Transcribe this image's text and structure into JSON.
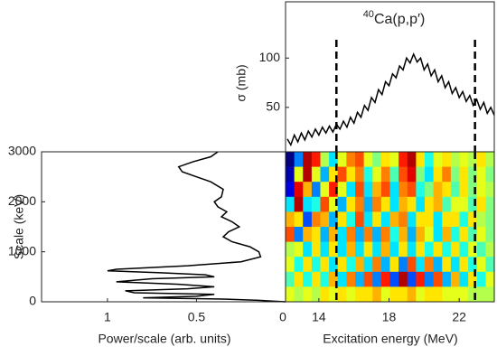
{
  "chart_data": [
    {
      "type": "line",
      "ylabel": "σ (mb)",
      "annotation": [
        "40",
        "Ca(p,p′)"
      ],
      "color": "#000000",
      "xlim": [
        12.1,
        24
      ],
      "ylim": [
        5,
        157
      ],
      "yticks": [
        50,
        100
      ],
      "vlines": [
        15,
        22.9
      ],
      "x": [
        12.2,
        12.4,
        12.6,
        12.8,
        13.0,
        13.2,
        13.4,
        13.6,
        13.8,
        14.0,
        14.2,
        14.4,
        14.6,
        14.8,
        15.0,
        15.2,
        15.4,
        15.6,
        15.8,
        16.0,
        16.2,
        16.4,
        16.6,
        16.8,
        17.0,
        17.2,
        17.4,
        17.6,
        17.8,
        18.0,
        18.2,
        18.4,
        18.6,
        18.8,
        19.0,
        19.2,
        19.4,
        19.6,
        19.8,
        20.0,
        20.2,
        20.4,
        20.6,
        20.8,
        21.0,
        21.2,
        21.4,
        21.6,
        21.8,
        22.0,
        22.2,
        22.4,
        22.6,
        22.8,
        23.0,
        23.2,
        23.4,
        23.6,
        23.8,
        24.0
      ],
      "values": [
        18,
        12,
        22,
        15,
        24,
        17,
        26,
        20,
        28,
        22,
        30,
        24,
        31,
        25,
        33,
        28,
        36,
        30,
        40,
        34,
        45,
        40,
        52,
        47,
        60,
        55,
        68,
        63,
        76,
        72,
        84,
        80,
        92,
        88,
        100,
        95,
        104,
        96,
        100,
        88,
        94,
        82,
        88,
        76,
        82,
        70,
        76,
        64,
        70,
        60,
        66,
        56,
        62,
        52,
        58,
        48,
        55,
        44,
        50,
        42
      ]
    },
    {
      "type": "line",
      "xlabel": "Power/scale (arb. units)",
      "ylabel": "Scale (keV)",
      "color": "#000000",
      "xlim": [
        1.37,
        0
      ],
      "xticks": [
        1,
        0.5,
        0
      ],
      "ylim": [
        0,
        3000
      ],
      "yticks": [
        0,
        1000,
        2000,
        3000
      ],
      "x": [
        0.38,
        0.42,
        0.52,
        0.6,
        0.58,
        0.5,
        0.42,
        0.35,
        0.36,
        0.4,
        0.38,
        0.33,
        0.36,
        0.3,
        0.26,
        0.32,
        0.35,
        0.3,
        0.2,
        0.15,
        0.14,
        0.25,
        0.55,
        0.95,
        1.0,
        0.7,
        0.45,
        0.4,
        0.75,
        0.95,
        0.6,
        0.4,
        0.55,
        0.9,
        0.85,
        0.4,
        0.5,
        0.8,
        0.35,
        0.15,
        0.05,
        0
      ],
      "values": [
        3000,
        2900,
        2800,
        2700,
        2600,
        2500,
        2400,
        2250,
        2100,
        2000,
        1900,
        1800,
        1700,
        1600,
        1500,
        1400,
        1300,
        1200,
        1100,
        1000,
        900,
        800,
        720,
        650,
        620,
        580,
        540,
        500,
        460,
        400,
        350,
        300,
        260,
        220,
        180,
        150,
        110,
        80,
        55,
        30,
        10,
        0
      ]
    },
    {
      "type": "heatmap",
      "xlabel": "Excitation energy (MeV)",
      "xlim": [
        12.1,
        24
      ],
      "xticks": [
        14,
        18,
        22
      ],
      "ylim": [
        0,
        3000
      ],
      "colormap": "jet",
      "zlim": [
        -1,
        1
      ],
      "vlines": [
        15,
        22.9
      ],
      "z": [
        [
          -1,
          -0.5,
          0.9,
          0.7,
          0.1,
          -0.3,
          0.2,
          0.5,
          0.6,
          0.2,
          0,
          0.3,
          0.2,
          0.7,
          0.9,
          0.3,
          -0.2,
          0.2,
          0.3,
          0.1,
          0.2,
          0.1,
          0.3,
          0.1
        ],
        [
          -0.9,
          0.2,
          0.9,
          0.2,
          -0.4,
          0.3,
          0.6,
          0.3,
          0.5,
          -0.2,
          0.2,
          0.5,
          -0.1,
          0.6,
          0.8,
          0,
          -0.3,
          0.3,
          0.5,
          0,
          0.3,
          0,
          0.2,
          0
        ],
        [
          -0.8,
          0.8,
          0.4,
          -0.5,
          0.2,
          0.7,
          0.2,
          -0.3,
          0.6,
          -0.3,
          0.4,
          0.6,
          -0.3,
          0.5,
          0.6,
          -0.2,
          0,
          0.4,
          0.3,
          -0.1,
          0.3,
          0,
          0.2,
          0.1
        ],
        [
          -0.3,
          0.9,
          -0.3,
          -0.2,
          0.6,
          0.2,
          -0.4,
          0.3,
          0.5,
          -0.4,
          0.5,
          0.3,
          -0.3,
          0.4,
          0.3,
          -0.3,
          0.3,
          0.4,
          -0.1,
          0.2,
          0.2,
          -0.1,
          0.3,
          0
        ],
        [
          0.4,
          0.3,
          -0.6,
          0.5,
          0.4,
          -0.4,
          0.3,
          -0.2,
          0.6,
          -0.3,
          0.3,
          -0.3,
          0.4,
          0.5,
          -0.3,
          0.3,
          0.3,
          -0.3,
          0.3,
          0.3,
          -0.2,
          0.3,
          0.1,
          0
        ],
        [
          0.6,
          -0.5,
          0.4,
          0.3,
          -0.4,
          0.4,
          -0.3,
          0.5,
          -0.4,
          0.5,
          -0.4,
          0.5,
          -0.2,
          0.4,
          -0.4,
          0.4,
          0.2,
          -0.3,
          0.4,
          -0.2,
          0.3,
          -0.1,
          0.2,
          0
        ],
        [
          0.1,
          0.2,
          -0.3,
          0.3,
          -0.3,
          0.3,
          -0.3,
          0.4,
          -0.3,
          0.3,
          -0.3,
          0.4,
          -0.3,
          0.3,
          -0.3,
          0.3,
          -0.2,
          0.3,
          -0.2,
          0.3,
          -0.2,
          0.2,
          -0.1,
          0.1
        ],
        [
          0.2,
          -0.2,
          0.3,
          -0.2,
          0.3,
          -0.3,
          0.3,
          -0.2,
          0.4,
          -0.3,
          0.5,
          -0.4,
          0.3,
          -0.5,
          0.6,
          -0.3,
          0.5,
          -0.4,
          0.3,
          -0.3,
          0.3,
          -0.2,
          0.2,
          -0.1
        ],
        [
          -0.1,
          0.3,
          -0.2,
          0.3,
          -0.2,
          0.4,
          -0.3,
          0.5,
          -0.4,
          0.6,
          -0.5,
          0.7,
          -0.6,
          0.9,
          -0.6,
          0.7,
          -0.5,
          0.6,
          -0.4,
          0.4,
          -0.3,
          0.3,
          -0.2,
          0.2
        ],
        [
          0.2,
          0.1,
          0.2,
          0.1,
          0.3,
          0.2,
          0.3,
          0.2,
          0.3,
          0.3,
          0.4,
          0.2,
          0.3,
          0.3,
          0.4,
          0.2,
          0.3,
          0.3,
          0.2,
          0.2,
          0.2,
          0.1,
          0.1,
          0.1
        ]
      ]
    }
  ]
}
